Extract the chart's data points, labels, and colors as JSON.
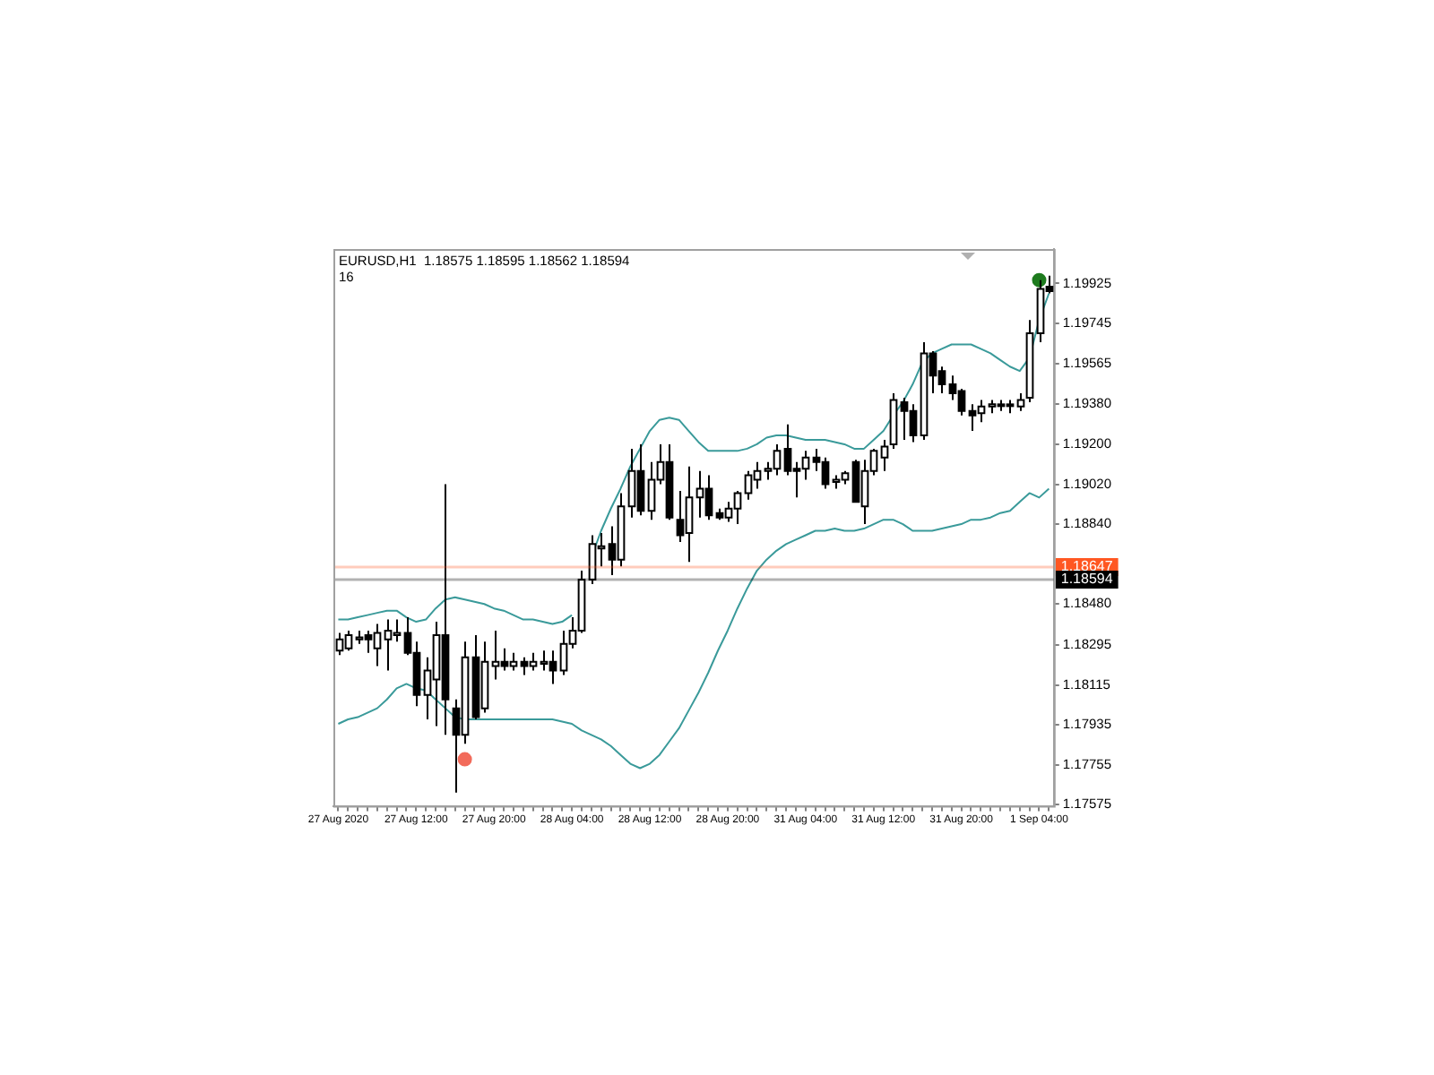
{
  "chart_data": {
    "type": "candlestick",
    "title": "EURUSD,H1  1.18575 1.18595 1.18562 1.18594",
    "subtitle": "16",
    "categories": [
      "27 Aug 2020",
      null,
      null,
      null,
      null,
      null,
      null,
      null,
      "27 Aug 12:00",
      null,
      null,
      null,
      null,
      null,
      null,
      null,
      "27 Aug 20:00",
      null,
      null,
      null,
      null,
      null,
      null,
      null,
      "28 Aug 04:00",
      null,
      null,
      null,
      null,
      null,
      null,
      null,
      "28 Aug 12:00",
      null,
      null,
      null,
      null,
      null,
      null,
      null,
      "28 Aug 20:00",
      null,
      null,
      null,
      null,
      null,
      null,
      null,
      "31 Aug 04:00",
      null,
      null,
      null,
      null,
      null,
      null,
      null,
      "31 Aug 12:00",
      null,
      null,
      null,
      null,
      null,
      null,
      null,
      "31 Aug 20:00",
      null,
      null,
      null,
      null,
      null,
      null,
      null,
      "1 Sep 04:00",
      null
    ],
    "ohlc": [
      [
        1.1827,
        1.1835,
        1.1825,
        1.1832
      ],
      [
        1.1828,
        1.1836,
        1.1827,
        1.1834
      ],
      [
        1.1832,
        1.1836,
        1.183,
        1.1833
      ],
      [
        1.1834,
        1.1836,
        1.1826,
        1.1832
      ],
      [
        1.1828,
        1.1839,
        1.182,
        1.1835
      ],
      [
        1.1832,
        1.1841,
        1.1818,
        1.1836
      ],
      [
        1.1834,
        1.1841,
        1.1831,
        1.1835
      ],
      [
        1.1835,
        1.1842,
        1.1825,
        1.1826
      ],
      [
        1.1826,
        1.1831,
        1.1802,
        1.1807
      ],
      [
        1.1807,
        1.1824,
        1.1796,
        1.1818
      ],
      [
        1.1814,
        1.184,
        1.1793,
        1.1834
      ],
      [
        1.1834,
        1.1902,
        1.1789,
        1.1805
      ],
      [
        1.1801,
        1.1805,
        1.1763,
        1.1789
      ],
      [
        1.1789,
        1.1831,
        1.1785,
        1.1824
      ],
      [
        1.1824,
        1.1834,
        1.1796,
        1.1797
      ],
      [
        1.1801,
        1.1831,
        1.1799,
        1.1822
      ],
      [
        1.182,
        1.1836,
        1.1814,
        1.1822
      ],
      [
        1.1822,
        1.1828,
        1.1818,
        1.182
      ],
      [
        1.182,
        1.1826,
        1.1818,
        1.1822
      ],
      [
        1.1822,
        1.1824,
        1.1816,
        1.182
      ],
      [
        1.182,
        1.1826,
        1.1818,
        1.1822
      ],
      [
        1.1821,
        1.1827,
        1.1818,
        1.1822
      ],
      [
        1.1822,
        1.1827,
        1.1812,
        1.1818
      ],
      [
        1.1818,
        1.1836,
        1.1816,
        1.183
      ],
      [
        1.183,
        1.1842,
        1.1828,
        1.1836
      ],
      [
        1.1836,
        1.1863,
        1.1835,
        1.1859
      ],
      [
        1.1859,
        1.1879,
        1.1857,
        1.1875
      ],
      [
        1.1873,
        1.188,
        1.1865,
        1.1874
      ],
      [
        1.1875,
        1.1883,
        1.1861,
        1.1868
      ],
      [
        1.1868,
        1.1898,
        1.1865,
        1.1892
      ],
      [
        1.1892,
        1.1918,
        1.1887,
        1.1908
      ],
      [
        1.1908,
        1.192,
        1.1888,
        1.189
      ],
      [
        1.189,
        1.1912,
        1.1886,
        1.1904
      ],
      [
        1.1904,
        1.192,
        1.1902,
        1.1912
      ],
      [
        1.1912,
        1.192,
        1.1886,
        1.1887
      ],
      [
        1.1886,
        1.1899,
        1.1876,
        1.1879
      ],
      [
        1.188,
        1.191,
        1.1867,
        1.1896
      ],
      [
        1.1896,
        1.1908,
        1.1887,
        1.19
      ],
      [
        1.19,
        1.1906,
        1.1886,
        1.1888
      ],
      [
        1.1889,
        1.1891,
        1.1886,
        1.1887
      ],
      [
        1.1887,
        1.1894,
        1.1885,
        1.1891
      ],
      [
        1.1891,
        1.1899,
        1.1884,
        1.1898
      ],
      [
        1.1898,
        1.1908,
        1.1895,
        1.1906
      ],
      [
        1.1904,
        1.1912,
        1.19,
        1.1908
      ],
      [
        1.1908,
        1.1912,
        1.1904,
        1.1909
      ],
      [
        1.1909,
        1.192,
        1.1906,
        1.1917
      ],
      [
        1.1918,
        1.1929,
        1.1906,
        1.1908
      ],
      [
        1.1909,
        1.1912,
        1.1896,
        1.1908
      ],
      [
        1.1909,
        1.1917,
        1.1904,
        1.1914
      ],
      [
        1.1914,
        1.1918,
        1.1908,
        1.1912
      ],
      [
        1.1912,
        1.1914,
        1.19,
        1.1902
      ],
      [
        1.1903,
        1.1906,
        1.19,
        1.1904
      ],
      [
        1.1904,
        1.1908,
        1.1902,
        1.1907
      ],
      [
        1.1912,
        1.1913,
        1.1894,
        1.1894
      ],
      [
        1.1892,
        1.1913,
        1.1884,
        1.1908
      ],
      [
        1.1908,
        1.1918,
        1.1906,
        1.1917
      ],
      [
        1.1914,
        1.1922,
        1.1908,
        1.1919
      ],
      [
        1.192,
        1.1943,
        1.1918,
        1.194
      ],
      [
        1.1939,
        1.1941,
        1.1922,
        1.1935
      ],
      [
        1.1935,
        1.1938,
        1.1921,
        1.1924
      ],
      [
        1.1924,
        1.1966,
        1.1922,
        1.1961
      ],
      [
        1.1961,
        1.1962,
        1.1943,
        1.1951
      ],
      [
        1.1953,
        1.1955,
        1.1943,
        1.1947
      ],
      [
        1.1947,
        1.1951,
        1.194,
        1.1943
      ],
      [
        1.1944,
        1.1945,
        1.1933,
        1.1935
      ],
      [
        1.1935,
        1.1938,
        1.1926,
        1.1933
      ],
      [
        1.1934,
        1.194,
        1.193,
        1.1937
      ],
      [
        1.1937,
        1.194,
        1.1934,
        1.1938
      ],
      [
        1.1938,
        1.194,
        1.1935,
        1.1938
      ],
      [
        1.1938,
        1.194,
        1.1934,
        1.1938
      ],
      [
        1.1937,
        1.1943,
        1.1935,
        1.194
      ],
      [
        1.1941,
        1.1976,
        1.1939,
        1.197
      ],
      [
        1.197,
        1.1994,
        1.1966,
        1.199
      ],
      [
        1.1991,
        1.1996,
        1.1988,
        1.1989
      ]
    ],
    "series": [
      {
        "type": "line",
        "color": "#3a9a9a",
        "values": [
          1.1841,
          1.1841,
          1.1842,
          1.1843,
          1.1844,
          1.1845,
          1.1845,
          1.1842,
          1.184,
          1.1841,
          1.1846,
          1.185,
          1.1851,
          1.185,
          1.1849,
          1.1848,
          1.1846,
          1.1845,
          1.1843,
          1.1841,
          1.1841,
          1.184,
          1.1839,
          1.184,
          1.1843,
          null,
          1.1869,
          1.1881,
          1.1891,
          1.19,
          1.191,
          1.1918,
          1.1926,
          1.1931,
          1.1932,
          1.1931,
          1.1926,
          1.1921,
          1.1917,
          1.1917,
          1.1917,
          1.1917,
          1.1918,
          1.192,
          1.1923,
          1.1924,
          1.1924,
          1.1923,
          1.1922,
          1.1922,
          1.1922,
          1.1921,
          1.192,
          1.1918,
          1.1918,
          1.1922,
          1.1926,
          1.1933,
          1.1939,
          1.1947,
          1.1957,
          1.1961,
          1.1963,
          1.1965,
          1.1965,
          1.1965,
          1.1963,
          1.1961,
          1.1958,
          1.1955,
          1.1953,
          1.1959,
          1.1976,
          1.1988
        ]
      },
      {
        "type": "line",
        "color": "#3a9a9a",
        "values": [
          1.1794,
          1.1796,
          1.1797,
          1.1799,
          1.1801,
          1.1805,
          1.181,
          1.1812,
          1.181,
          1.1809,
          1.1805,
          1.1801,
          1.1797,
          1.1796,
          1.1796,
          1.1796,
          1.1796,
          1.1796,
          1.1796,
          1.1796,
          1.1796,
          1.1796,
          1.1796,
          1.1795,
          1.1794,
          1.1791,
          1.1789,
          1.1787,
          1.1784,
          1.178,
          1.1776,
          1.1774,
          1.1776,
          1.178,
          1.1786,
          1.1792,
          1.18,
          1.1808,
          1.1817,
          1.1827,
          1.1836,
          1.1846,
          1.1855,
          1.1863,
          1.1868,
          1.1872,
          1.1875,
          1.1877,
          1.1879,
          1.1881,
          1.1881,
          1.1882,
          1.1881,
          1.1881,
          1.1882,
          1.1884,
          1.1886,
          1.1886,
          1.1884,
          1.1881,
          1.1881,
          1.1881,
          1.1882,
          1.1883,
          1.1884,
          1.1886,
          1.1886,
          1.1887,
          1.1889,
          1.189,
          1.1894,
          1.1898,
          1.1896,
          1.19
        ]
      },
      {
        "type": "scatter",
        "color": "#f26b5b",
        "marker": "circle",
        "values": [
          null,
          null,
          null,
          null,
          null,
          null,
          null,
          null,
          null,
          null,
          null,
          null,
          null,
          1.1778,
          null,
          null,
          null,
          null,
          null,
          null,
          null,
          null,
          null,
          null,
          null,
          null,
          null,
          null,
          null,
          null,
          null,
          null,
          null,
          null,
          null,
          null,
          null,
          null,
          null,
          null,
          null,
          null,
          null,
          null,
          null,
          null,
          null,
          null,
          null,
          null,
          null,
          null,
          null,
          null,
          null,
          null,
          null,
          null,
          null,
          null,
          null,
          null,
          null,
          null,
          null,
          null,
          null,
          null,
          null,
          null,
          null,
          null,
          null,
          null
        ]
      },
      {
        "type": "scatter",
        "color": "#1e7b1e",
        "marker": "circle",
        "values": [
          null,
          null,
          null,
          null,
          null,
          null,
          null,
          null,
          null,
          null,
          null,
          null,
          null,
          null,
          null,
          null,
          null,
          null,
          null,
          null,
          null,
          null,
          null,
          null,
          null,
          null,
          null,
          null,
          null,
          null,
          null,
          null,
          null,
          null,
          null,
          null,
          null,
          null,
          null,
          null,
          null,
          null,
          null,
          null,
          null,
          null,
          null,
          null,
          null,
          null,
          null,
          null,
          null,
          null,
          null,
          null,
          null,
          null,
          null,
          null,
          null,
          null,
          null,
          null,
          null,
          null,
          null,
          null,
          null,
          null,
          null,
          null,
          1.1994,
          null
        ]
      }
    ],
    "ylim": [
      1.1757,
      1.2008
    ],
    "yticks": [
      1.17575,
      1.17755,
      1.17935,
      1.18115,
      1.18295,
      {
        "value": 1.1848,
        "label": "1.18480"
      },
      {
        "value": 1.1884,
        "label": "1.18840"
      },
      {
        "value": 1.1902,
        "label": "1.19020"
      },
      {
        "value": 1.192,
        "label": "1.19200"
      },
      {
        "value": 1.1938,
        "label": "1.19380"
      },
      1.19565,
      1.19745,
      1.19925
    ],
    "ref_lines": [
      {
        "axis": "y",
        "value": 1.18647,
        "label": "1.18647",
        "color": "#ff5722"
      },
      {
        "axis": "y",
        "value": 1.18594,
        "label": "1.18594",
        "color": "#000000"
      }
    ]
  }
}
